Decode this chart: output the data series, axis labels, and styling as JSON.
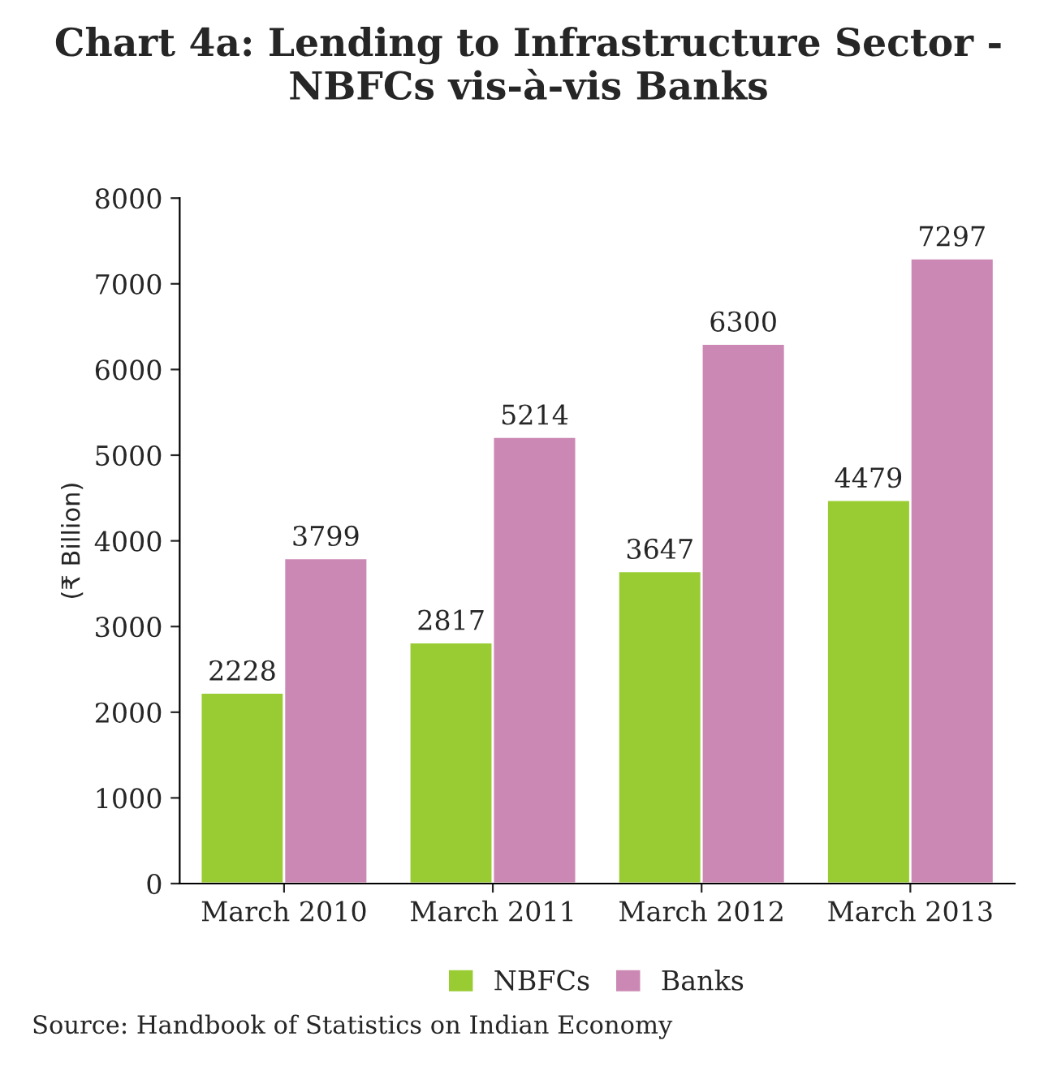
{
  "chart_data": {
    "type": "bar",
    "title": "Chart 4a: Lending to Infrastructure Sector - NBFCs vis-à-vis Banks",
    "ylabel": "(₹ Billion)",
    "categories": [
      "March 2010",
      "March 2011",
      "March 2012",
      "March 2013"
    ],
    "series": [
      {
        "name": "NBFCs",
        "color": "#99cc33",
        "values": [
          2228,
          2817,
          3647,
          4479
        ]
      },
      {
        "name": "Banks",
        "color": "#cc88b4",
        "values": [
          3799,
          5214,
          6300,
          7297
        ]
      }
    ],
    "ylim": [
      0,
      8000
    ],
    "yticks": [
      0,
      1000,
      2000,
      3000,
      4000,
      5000,
      6000,
      7000,
      8000
    ],
    "data_labels": true,
    "grid": false,
    "legend": "bottom",
    "annotations": [
      "Source: Handbook of Statistics on Indian Economy"
    ]
  }
}
